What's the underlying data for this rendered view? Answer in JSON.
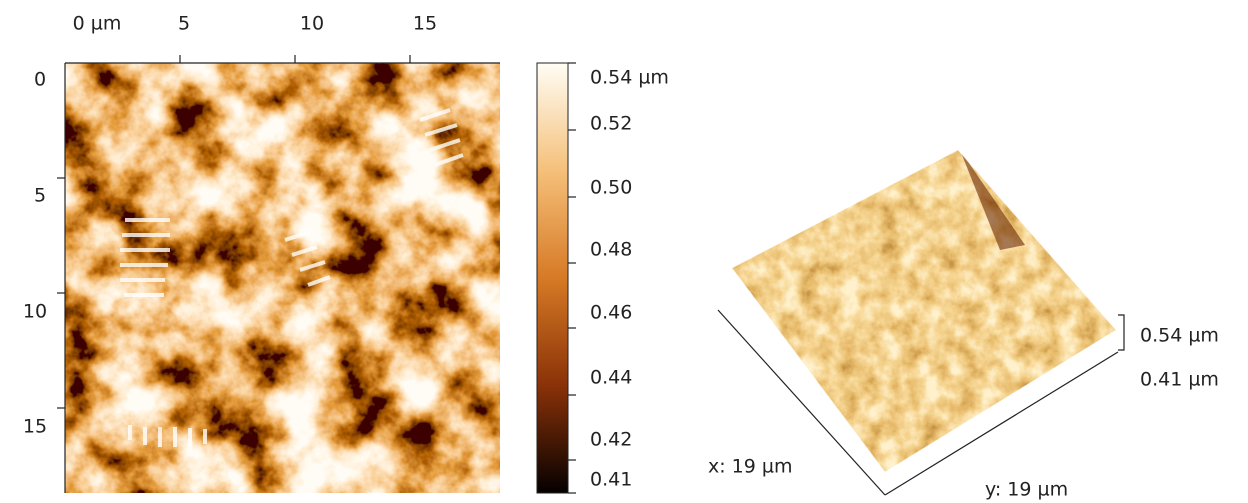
{
  "image_2d": {
    "x_ticks": [
      "0 µm",
      "5",
      "10",
      "15"
    ],
    "y_ticks": [
      "0",
      "5",
      "10",
      "15"
    ]
  },
  "colorbar": {
    "ticks": [
      "0.54 µm",
      "0.52",
      "0.50",
      "0.48",
      "0.46",
      "0.44",
      "0.42",
      "0.41"
    ]
  },
  "view_3d": {
    "z_max": "0.54 µm",
    "z_min": "0.41 µm",
    "x_label": "x: 19 µm",
    "y_label": "y: 19 µm"
  }
}
